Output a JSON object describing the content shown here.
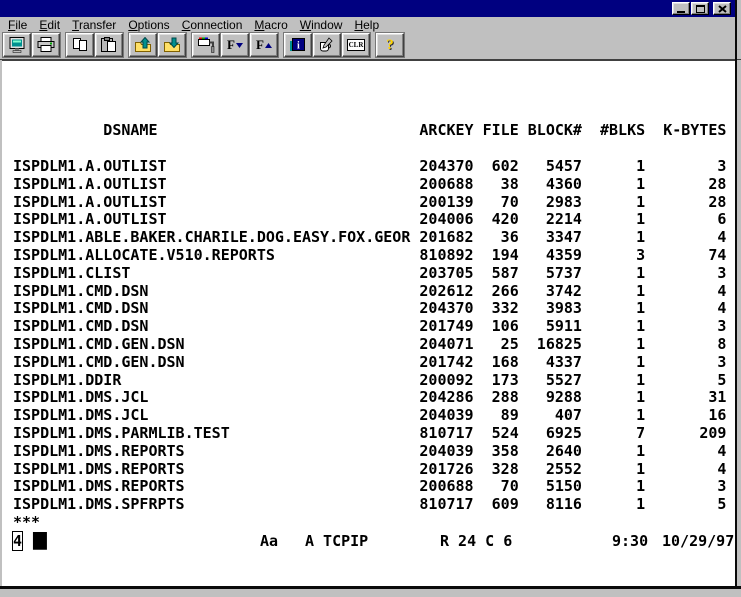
{
  "window": {
    "icons": {
      "minimize": "_",
      "maximize": "[]",
      "close": "x",
      "help": "?"
    }
  },
  "menu": {
    "items": [
      {
        "label": "File"
      },
      {
        "label": "Edit"
      },
      {
        "label": "Transfer"
      },
      {
        "label": "Options"
      },
      {
        "label": "Connection"
      },
      {
        "label": "Macro"
      },
      {
        "label": "Window"
      },
      {
        "label": "Help"
      }
    ]
  },
  "toolbar": {
    "clr_label": "CLR",
    "buttons": [
      "session",
      "print",
      "copy",
      "paste",
      "send-file",
      "receive-file",
      "color-setup",
      "font-smaller",
      "font-larger",
      "index",
      "notes",
      "clear",
      "help"
    ]
  },
  "terminal": {
    "columns": [
      "DSNAME",
      "ARCKEY",
      "FILE",
      "BLOCK#",
      "#BLKS",
      "K-BYTES"
    ],
    "rows": [
      [
        "ISPDLM1.A.OUTLIST",
        "204370",
        "602",
        "5457",
        "1",
        "3"
      ],
      [
        "ISPDLM1.A.OUTLIST",
        "200688",
        "38",
        "4360",
        "1",
        "28"
      ],
      [
        "ISPDLM1.A.OUTLIST",
        "200139",
        "70",
        "2983",
        "1",
        "28"
      ],
      [
        "ISPDLM1.A.OUTLIST",
        "204006",
        "420",
        "2214",
        "1",
        "6"
      ],
      [
        "ISPDLM1.ABLE.BAKER.CHARILE.DOG.EASY.FOX.GEOR",
        "201682",
        "36",
        "3347",
        "1",
        "4"
      ],
      [
        "ISPDLM1.ALLOCATE.V510.REPORTS",
        "810892",
        "194",
        "4359",
        "3",
        "74"
      ],
      [
        "ISPDLM1.CLIST",
        "203705",
        "587",
        "5737",
        "1",
        "3"
      ],
      [
        "ISPDLM1.CMD.DSN",
        "202612",
        "266",
        "3742",
        "1",
        "4"
      ],
      [
        "ISPDLM1.CMD.DSN",
        "204370",
        "332",
        "3983",
        "1",
        "4"
      ],
      [
        "ISPDLM1.CMD.DSN",
        "201749",
        "106",
        "5911",
        "1",
        "3"
      ],
      [
        "ISPDLM1.CMD.GEN.DSN",
        "204071",
        "25",
        "16825",
        "1",
        "8"
      ],
      [
        "ISPDLM1.CMD.GEN.DSN",
        "201742",
        "168",
        "4337",
        "1",
        "3"
      ],
      [
        "ISPDLM1.DDIR",
        "200092",
        "173",
        "5527",
        "1",
        "5"
      ],
      [
        "ISPDLM1.DMS.JCL",
        "204286",
        "288",
        "9288",
        "1",
        "31"
      ],
      [
        "ISPDLM1.DMS.JCL",
        "204039",
        "89",
        "407",
        "1",
        "16"
      ],
      [
        "ISPDLM1.DMS.PARMLIB.TEST",
        "810717",
        "524",
        "6925",
        "7",
        "209"
      ],
      [
        "ISPDLM1.DMS.REPORTS",
        "204039",
        "358",
        "2640",
        "1",
        "4"
      ],
      [
        "ISPDLM1.DMS.REPORTS",
        "201726",
        "328",
        "2552",
        "1",
        "4"
      ],
      [
        "ISPDLM1.DMS.REPORTS",
        "200688",
        "70",
        "5150",
        "1",
        "3"
      ],
      [
        "ISPDLM1.DMS.SPFRPTS",
        "810717",
        "609",
        "8116",
        "1",
        "5"
      ]
    ],
    "end_marker": "***"
  },
  "oia": {
    "session_id": "4",
    "cursor_block": "█",
    "case_indicator": "Aa",
    "connection": "A TCPIP",
    "cursor_position": "R 24 C 6",
    "time": "9:30",
    "date": "10/29/97"
  },
  "colors": {
    "titlebar": "#000080",
    "chrome": "#c0c0c0",
    "screen_bg": "#ffffff",
    "screen_fg": "#000000"
  }
}
